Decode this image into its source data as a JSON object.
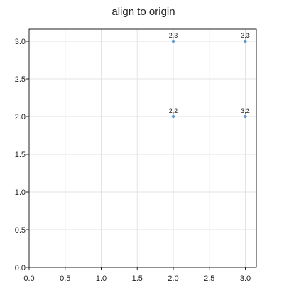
{
  "chart_data": {
    "type": "scatter",
    "title": "align to origin",
    "xlabel": "",
    "ylabel": "",
    "xlim": [
      0,
      3.15
    ],
    "ylim": [
      0,
      3.15
    ],
    "xticks": [
      0.0,
      0.5,
      1.0,
      1.5,
      2.0,
      2.5,
      3.0
    ],
    "yticks": [
      0.0,
      0.5,
      1.0,
      1.5,
      2.0,
      2.5,
      3.0
    ],
    "xtick_labels": [
      "0.0",
      "0.5",
      "1.0",
      "1.5",
      "2.0",
      "2.5",
      "3.0"
    ],
    "ytick_labels": [
      "0.0",
      "0.5",
      "1.0",
      "1.5",
      "2.0",
      "2.5",
      "3.0"
    ],
    "grid": true,
    "series": [
      {
        "color": "#5b9bd5",
        "points": [
          {
            "x": 2,
            "y": 2,
            "label": "2,2"
          },
          {
            "x": 2,
            "y": 3,
            "label": "2,3"
          },
          {
            "x": 3,
            "y": 2,
            "label": "3,2"
          },
          {
            "x": 3,
            "y": 3,
            "label": "3,3"
          }
        ]
      }
    ]
  }
}
